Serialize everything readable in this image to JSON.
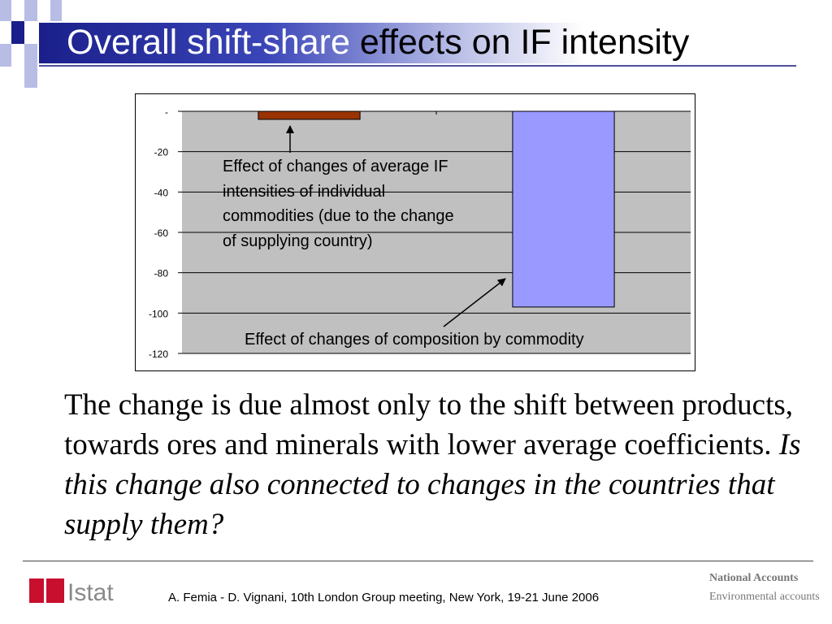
{
  "slide": {
    "title_part1": "Overall shift-share",
    "title_part2": " effects on IF intensity",
    "body_plain": "The change is due almost only to the shift between products, towards ores and minerals with lower average coefficients. ",
    "body_italic": "Is this change also connected to changes in the countries that supply them?",
    "citation": "A. Femia - D. Vignani, 10th London Group meeting, New York, 19-21 June 2006",
    "logo_text": "Istat",
    "footer_brand_line1": "National Accounts",
    "footer_brand_line2": "Environmental accounts"
  },
  "chart_data": {
    "type": "bar",
    "title": "",
    "xlabel": "",
    "ylabel": "",
    "ylim": [
      -120,
      0
    ],
    "y_ticks": [
      0,
      -20,
      -40,
      -60,
      -80,
      -100,
      -120
    ],
    "y_tick_labels": [
      "-",
      "-20",
      "-40",
      "-60",
      "-80",
      "-100",
      "-120"
    ],
    "grid": true,
    "plot_background": "#c0c0c0",
    "series": [
      {
        "values": [
          -4,
          -97
        ],
        "colors": [
          "#993300",
          "#9999ff"
        ]
      }
    ],
    "annotations": [
      {
        "text": "Effect of changes of average IF intensities of individual commodities (due to the change of supplying country)",
        "target_bar": 0
      },
      {
        "text": "Effect of changes of composition by commodity",
        "target_bar": 1
      }
    ]
  },
  "colors": {
    "title_dark": "#1a1f8a",
    "deco_dark": "#1a1f8a",
    "deco_light": "#b8bde6",
    "logo_red": "#c8102e",
    "logo_gray": "#8a8a8a"
  }
}
